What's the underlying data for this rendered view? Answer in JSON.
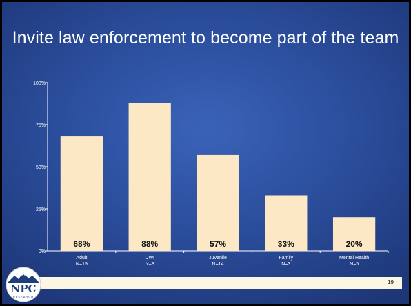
{
  "slide": {
    "title": "Invite law enforcement to become part of the team",
    "page_number": "19",
    "logo": {
      "text": "NPC",
      "subtext": "RESEARCH"
    }
  },
  "chart_data": {
    "type": "bar",
    "title": "",
    "xlabel": "",
    "ylabel": "",
    "ylim": [
      0,
      100
    ],
    "yticks": [
      "0%",
      "25%",
      "50%",
      "75%",
      "100%"
    ],
    "categories": [
      "Adult\nN=19",
      "DWI\nN=8",
      "Juvenile\nN=14",
      "Family\nN=3",
      "Mental Health\nN=5"
    ],
    "values": [
      68,
      88,
      57,
      33,
      20
    ],
    "data_labels": [
      "68%",
      "88%",
      "57%",
      "33%",
      "20%"
    ],
    "grid": false,
    "legend": "none",
    "colors": {
      "bar": "#fde8c6",
      "label": "#111111",
      "axis": "#ffffff"
    }
  }
}
